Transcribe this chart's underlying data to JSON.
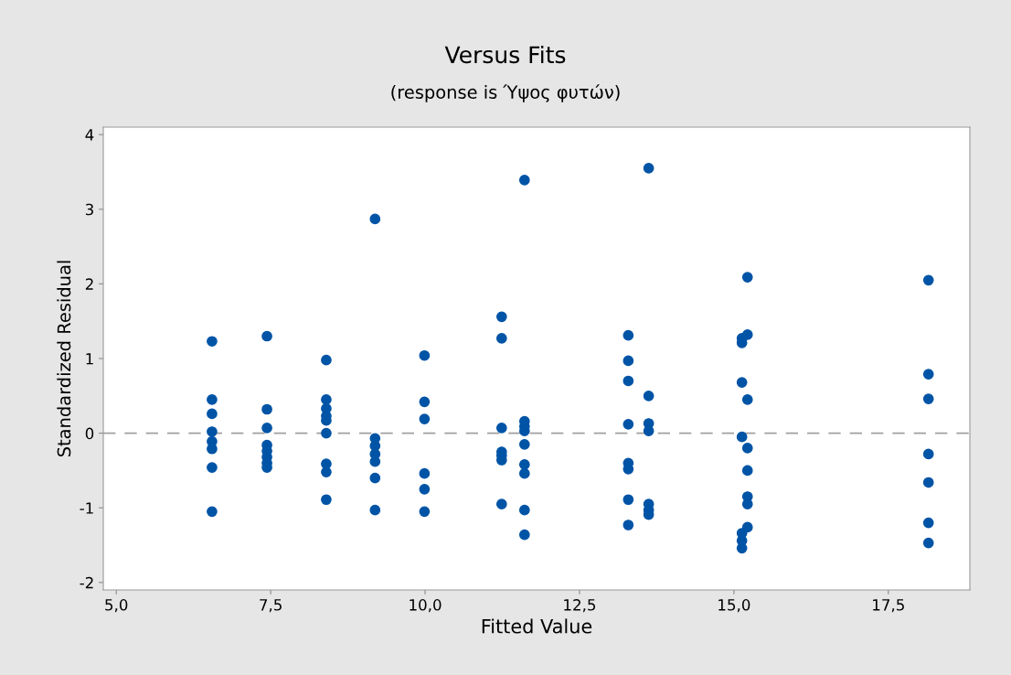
{
  "chart_data": {
    "type": "scatter",
    "title": "Versus Fits",
    "subtitle": "(response is Ύψος φυτών)",
    "xlabel": "Fitted Value",
    "ylabel": "Standardized Residual",
    "xlim": [
      4.79,
      18.82
    ],
    "xticks": [
      {
        "value": 5,
        "label": "5,0"
      },
      {
        "value": 7.5,
        "label": "7,5"
      },
      {
        "value": 10,
        "label": "10,0"
      },
      {
        "value": 12.5,
        "label": "12,5"
      },
      {
        "value": 15,
        "label": "15,0"
      },
      {
        "value": 17.5,
        "label": "17,5"
      }
    ],
    "ylim": [
      -2.1,
      4.1
    ],
    "yticks": [
      -2,
      -1,
      0,
      1,
      2,
      3,
      4
    ],
    "marker": "circle",
    "grid": false,
    "ref_lines": [
      {
        "axis": "y",
        "value": 0,
        "color": "#a0a0a0",
        "line_style": "dashed"
      }
    ],
    "series": [
      {
        "color": "#0054a6",
        "x": [
          6.55,
          6.55,
          6.55,
          6.55,
          6.55,
          6.55,
          6.55,
          6.55,
          7.44,
          7.44,
          7.44,
          7.44,
          7.44,
          7.44,
          7.44,
          7.44,
          8.4,
          8.4,
          8.4,
          8.4,
          8.4,
          8.4,
          8.4,
          8.4,
          8.4,
          9.19,
          9.19,
          9.19,
          9.19,
          9.19,
          9.19,
          9.19,
          9.99,
          9.99,
          9.99,
          9.99,
          9.99,
          9.99,
          11.24,
          11.24,
          11.24,
          11.24,
          11.24,
          11.24,
          11.24,
          11.61,
          11.61,
          11.61,
          11.61,
          11.61,
          11.61,
          11.61,
          11.61,
          11.61,
          13.29,
          13.29,
          13.29,
          13.29,
          13.29,
          13.29,
          13.29,
          13.29,
          13.62,
          13.62,
          13.62,
          13.62,
          13.62,
          13.62,
          13.62,
          15.22,
          15.22,
          15.13,
          15.13,
          15.13,
          15.22,
          15.13,
          15.22,
          15.22,
          15.22,
          15.22,
          15.22,
          15.13,
          15.13,
          15.13,
          18.15,
          18.15,
          18.15,
          18.15,
          18.15,
          18.15,
          18.15
        ],
        "values": [
          1.23,
          0.45,
          0.26,
          0.02,
          -0.11,
          -0.21,
          -0.46,
          -1.05,
          1.3,
          0.32,
          0.07,
          -0.16,
          -0.24,
          -0.32,
          -0.4,
          -0.46,
          0.98,
          0.45,
          0.33,
          0.23,
          0.17,
          0.0,
          -0.41,
          -0.52,
          -0.89,
          2.87,
          -0.07,
          -0.17,
          -0.28,
          -0.38,
          -0.6,
          -1.03,
          1.04,
          0.42,
          0.19,
          -0.54,
          -0.75,
          -1.05,
          1.56,
          1.27,
          0.07,
          -0.25,
          -0.3,
          -0.36,
          -0.95,
          3.39,
          0.16,
          0.09,
          -0.15,
          -0.42,
          -0.54,
          -1.03,
          -1.36,
          0.03,
          1.31,
          0.97,
          0.7,
          0.12,
          -0.4,
          -0.48,
          -0.89,
          -1.23,
          3.55,
          0.5,
          0.13,
          0.03,
          -0.95,
          -1.03,
          -1.09,
          2.09,
          1.32,
          1.27,
          1.21,
          0.68,
          0.45,
          -0.05,
          -0.2,
          -0.5,
          -0.85,
          -0.95,
          -1.26,
          -1.34,
          -1.44,
          -1.54,
          2.05,
          0.79,
          0.46,
          -0.28,
          -0.66,
          -1.2,
          -1.47
        ]
      }
    ]
  }
}
